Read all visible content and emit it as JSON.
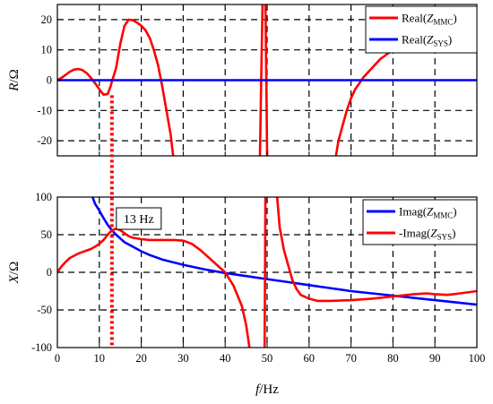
{
  "chart_data": [
    {
      "type": "line",
      "id": "top",
      "ylabel": {
        "italic": "R",
        "rest": "/Ω"
      },
      "xlim": [
        0,
        100
      ],
      "ylim": [
        -25,
        25
      ],
      "yticks": [
        -20,
        -10,
        0,
        10,
        20
      ],
      "xticks": [
        0,
        10,
        20,
        30,
        40,
        50,
        60,
        70,
        80,
        90,
        100
      ],
      "show_x_tick_labels": false,
      "grid": true,
      "legend_position": "top-right",
      "series": [
        {
          "name": {
            "prefix": "Real(",
            "italic": "Z",
            "sub": "MMC",
            "suffix": ")"
          },
          "color": "#ff0000",
          "segments": [
            [
              [
                0,
                0
              ],
              [
                1,
                0.8
              ],
              [
                2,
                1.8
              ],
              [
                3,
                2.8
              ],
              [
                4,
                3.5
              ],
              [
                5,
                3.7
              ],
              [
                6,
                3.3
              ],
              [
                7,
                2.3
              ],
              [
                8,
                0.8
              ],
              [
                9,
                -1
              ],
              [
                10,
                -3
              ],
              [
                11,
                -4.8
              ],
              [
                12,
                -4.6
              ],
              [
                12.7,
                -2
              ],
              [
                13,
                -0.5
              ],
              [
                14,
                4
              ],
              [
                15,
                12
              ],
              [
                16,
                18
              ],
              [
                17,
                20
              ],
              [
                18,
                19.8
              ],
              [
                19,
                19
              ],
              [
                20,
                18
              ],
              [
                21,
                16.5
              ],
              [
                22,
                14
              ],
              [
                23,
                10
              ],
              [
                24,
                5
              ],
              [
                25,
                -2
              ],
              [
                26,
                -10
              ],
              [
                27,
                -18
              ],
              [
                27.6,
                -25
              ]
            ],
            [
              [
                48.3,
                -25
              ],
              [
                48.6,
                0
              ],
              [
                48.9,
                25
              ]
            ],
            [
              [
                49.6,
                25
              ],
              [
                49.8,
                0
              ],
              [
                50,
                -25
              ]
            ],
            [
              [
                66.4,
                -25
              ],
              [
                67,
                -20
              ],
              [
                68,
                -15
              ],
              [
                69,
                -10
              ],
              [
                70,
                -6
              ],
              [
                71,
                -3
              ],
              [
                72,
                -1
              ],
              [
                73,
                1
              ],
              [
                74,
                2.5
              ],
              [
                75,
                4
              ],
              [
                76,
                5.5
              ],
              [
                77,
                7
              ],
              [
                78,
                8
              ],
              [
                79,
                9
              ],
              [
                80,
                10
              ],
              [
                81,
                10.8
              ]
            ]
          ]
        },
        {
          "name": {
            "prefix": "Real(",
            "italic": "Z",
            "sub": "SYS",
            "suffix": ")"
          },
          "color": "#0000ff",
          "segments": [
            [
              [
                0,
                0
              ],
              [
                100,
                0
              ]
            ]
          ]
        }
      ]
    },
    {
      "type": "line",
      "id": "bottom",
      "xlabel": {
        "italic": "f",
        "rest": "/Hz"
      },
      "ylabel": {
        "italic": "X",
        "rest": "/Ω"
      },
      "xlim": [
        0,
        100
      ],
      "ylim": [
        -100,
        100
      ],
      "yticks": [
        -100,
        -50,
        0,
        50,
        100
      ],
      "xticks": [
        0,
        10,
        20,
        30,
        40,
        50,
        60,
        70,
        80,
        90,
        100
      ],
      "show_x_tick_labels": true,
      "grid": true,
      "legend_position": "top-right",
      "series": [
        {
          "name": {
            "prefix": "Imag(",
            "italic": "Z",
            "sub": "MMC",
            "suffix": ")"
          },
          "color": "#0000ff",
          "segments": [
            [
              [
                8.4,
                100
              ],
              [
                9,
                91
              ],
              [
                10,
                82
              ],
              [
                11,
                72
              ],
              [
                12,
                63
              ],
              [
                13,
                56
              ],
              [
                14,
                50
              ],
              [
                15,
                45
              ],
              [
                16,
                40
              ],
              [
                18,
                34
              ],
              [
                20,
                28
              ],
              [
                22,
                23
              ],
              [
                25,
                17
              ],
              [
                30,
                10
              ],
              [
                35,
                4
              ],
              [
                40,
                -1
              ],
              [
                45,
                -5
              ],
              [
                50,
                -9
              ],
              [
                55,
                -13
              ],
              [
                60,
                -17
              ],
              [
                65,
                -21
              ],
              [
                70,
                -25
              ],
              [
                75,
                -28
              ],
              [
                80,
                -31
              ],
              [
                85,
                -34
              ],
              [
                90,
                -37
              ],
              [
                95,
                -40
              ],
              [
                100,
                -43
              ]
            ]
          ]
        },
        {
          "name": {
            "prefix": "-Imag(",
            "italic": "Z",
            "sub": "SYS",
            "suffix": ")"
          },
          "color": "#ff0000",
          "segments": [
            [
              [
                0,
                0
              ],
              [
                1,
                8
              ],
              [
                2,
                14
              ],
              [
                3,
                19
              ],
              [
                4,
                22
              ],
              [
                5,
                25
              ],
              [
                6,
                27
              ],
              [
                7,
                29
              ],
              [
                8,
                31
              ],
              [
                9,
                34
              ],
              [
                10,
                38
              ],
              [
                11,
                43
              ],
              [
                12,
                50
              ],
              [
                13,
                56
              ],
              [
                14,
                58
              ],
              [
                15,
                56
              ],
              [
                16,
                52
              ],
              [
                17,
                48
              ],
              [
                18,
                46
              ],
              [
                20,
                44
              ],
              [
                22,
                43
              ],
              [
                25,
                43
              ],
              [
                28,
                43
              ],
              [
                30,
                42
              ],
              [
                32,
                38
              ],
              [
                34,
                30
              ],
              [
                36,
                20
              ],
              [
                38,
                10
              ],
              [
                40,
                0
              ],
              [
                42,
                -18
              ],
              [
                44,
                -45
              ],
              [
                45,
                -70
              ],
              [
                45.8,
                -100
              ]
            ],
            [
              [
                49.4,
                -100
              ],
              [
                49.5,
                0
              ],
              [
                49.6,
                100
              ]
            ],
            [
              [
                52.4,
                100
              ],
              [
                53,
                60
              ],
              [
                54,
                30
              ],
              [
                55,
                10
              ],
              [
                56,
                -10
              ],
              [
                57,
                -22
              ],
              [
                58,
                -30
              ],
              [
                60,
                -35
              ],
              [
                62,
                -38
              ],
              [
                65,
                -38
              ],
              [
                70,
                -37
              ],
              [
                75,
                -35
              ],
              [
                80,
                -32
              ],
              [
                85,
                -29
              ],
              [
                88,
                -28
              ],
              [
                90,
                -29
              ],
              [
                93,
                -30
              ],
              [
                96,
                -28
              ],
              [
                100,
                -25
              ]
            ]
          ]
        }
      ],
      "annotation": {
        "text": "13 Hz",
        "x": 13
      }
    }
  ]
}
